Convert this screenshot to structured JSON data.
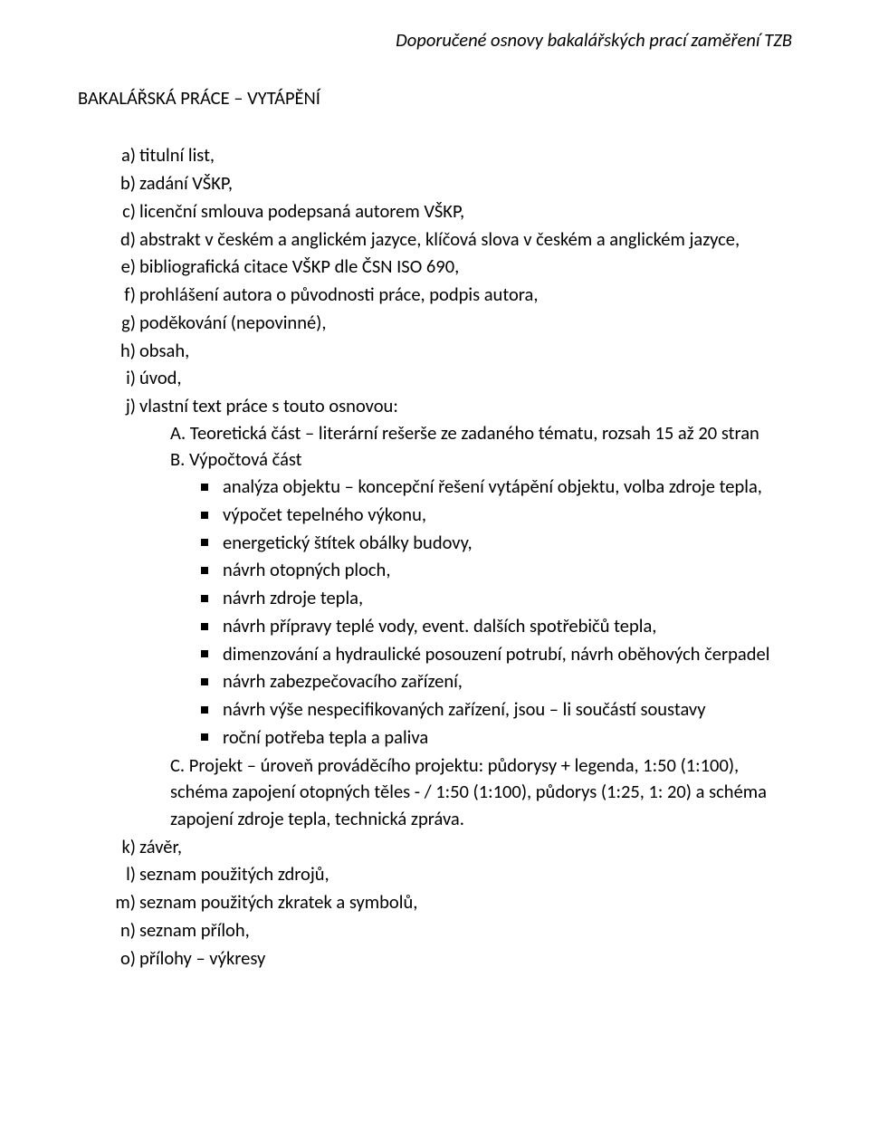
{
  "header": {
    "text": "Doporučené osnovy bakalářských prací zaměření TZB"
  },
  "title": "BAKALÁŘSKÁ PRÁCE – VYTÁPĚNÍ",
  "items": {
    "a": {
      "marker": "a)",
      "text": "titulní list,"
    },
    "b": {
      "marker": "b)",
      "text": "zadání VŠKP,"
    },
    "c": {
      "marker": "c)",
      "text": "licenční smlouva podepsaná autorem VŠKP,"
    },
    "d": {
      "marker": "d)",
      "text": "abstrakt v českém a anglickém jazyce, klíčová slova v českém a anglickém jazyce,"
    },
    "e": {
      "marker": "e)",
      "text": "bibliografická citace VŠKP dle ČSN ISO 690,"
    },
    "f": {
      "marker": "f)",
      "text": "prohlášení autora o původnosti práce, podpis autora,"
    },
    "g": {
      "marker": "g)",
      "text": "poděkování (nepovinné),"
    },
    "h": {
      "marker": "h)",
      "text": "obsah,"
    },
    "i": {
      "marker": "i)",
      "text": "úvod,"
    },
    "j": {
      "marker": "j)",
      "text": "vlastní text práce s touto osnovou:"
    },
    "k": {
      "marker": "k)",
      "text": "závěr,"
    },
    "l": {
      "marker": "l)",
      "text": "seznam použitých zdrojů,"
    },
    "m": {
      "marker": "m)",
      "text": "seznam použitých zkratek a symbolů,"
    },
    "n": {
      "marker": "n)",
      "text": "seznam příloh,"
    },
    "o": {
      "marker": "o)",
      "text": "přílohy – výkresy"
    }
  },
  "subA": "A. Teoretická část – literární rešerše ze zadaného tématu, rozsah 15 až 20 stran",
  "subB": "B. Výpočtová část",
  "bullets": {
    "b0": "analýza objektu – koncepční řešení vytápění objektu, volba zdroje tepla,",
    "b1": "výpočet tepelného výkonu,",
    "b2": "energetický štítek obálky budovy,",
    "b3": "návrh otopných ploch,",
    "b4": "návrh zdroje tepla,",
    "b5": "návrh přípravy teplé vody, event. dalších spotřebičů tepla,",
    "b6": "dimenzování a hydraulické posouzení potrubí, návrh oběhových čerpadel",
    "b7": "návrh zabezpečovacího zařízení,",
    "b8": "návrh výše nespecifikovaných zařízení, jsou – li součástí soustavy",
    "b9": "roční potřeba tepla a paliva"
  },
  "subC": "C. Projekt – úroveň prováděcího projektu: půdorysy + legenda, 1:50 (1:100), schéma zapojení otopných těles - / 1:50 (1:100), půdorys (1:25, 1: 20) a schéma zapojení zdroje tepla,     technická zpráva.",
  "colors": {
    "text": "#000000",
    "bg": "#ffffff"
  },
  "fontsize_pt": 15
}
